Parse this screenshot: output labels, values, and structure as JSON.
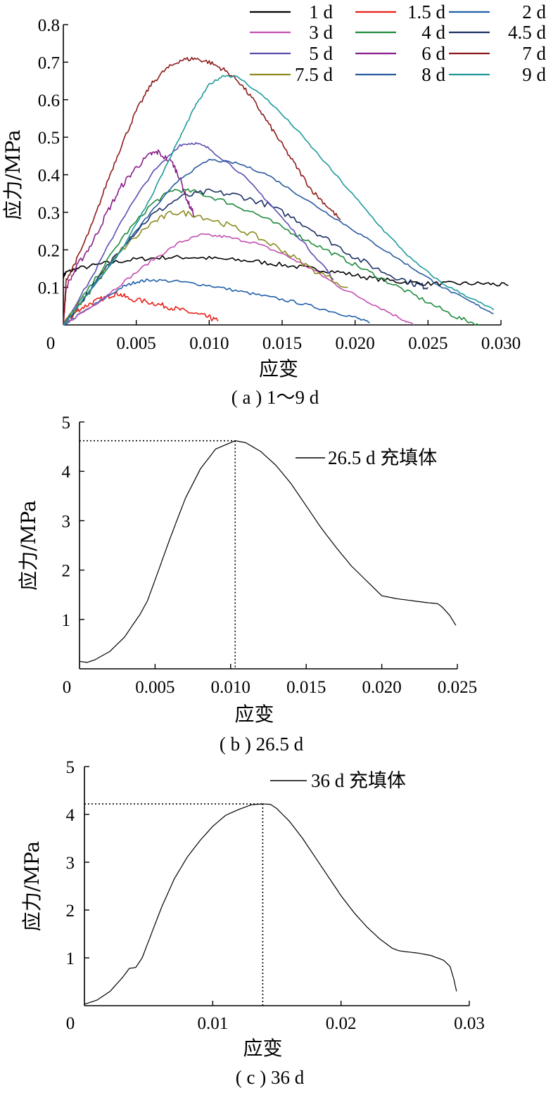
{
  "chart_data": [
    {
      "type": "line",
      "caption": "( a ) 1～9 d",
      "xlabel": "应变",
      "ylabel": "应力/MPa",
      "xlim": [
        0,
        0.03
      ],
      "ylim": [
        0,
        0.8
      ],
      "xticks": [
        0.005,
        0.01,
        0.015,
        0.02,
        0.025,
        0.03
      ],
      "xtick_labels": [
        "0.005",
        "0.010",
        "0.015",
        "0.020",
        "0.025",
        "0.030"
      ],
      "yticks": [
        0.1,
        0.2,
        0.3,
        0.4,
        0.5,
        0.6,
        0.7,
        0.8
      ],
      "ytick_labels": [
        "0.1",
        "0.2",
        "0.3",
        "0.4",
        "0.5",
        "0.6",
        "0.7",
        "0.8"
      ],
      "origin_label": "0",
      "legend_position": "top-right",
      "series": [
        {
          "name": "1 d",
          "color": "#000000",
          "noise": 0.006,
          "x": [
            0,
            0.0002,
            0.001,
            0.003,
            0.005,
            0.007,
            0.009,
            0.011,
            0.013,
            0.015,
            0.017,
            0.019,
            0.021,
            0.023,
            0.025,
            0.027,
            0.029,
            0.0305
          ],
          "y": [
            0.13,
            0.14,
            0.15,
            0.165,
            0.175,
            0.18,
            0.18,
            0.175,
            0.17,
            0.16,
            0.15,
            0.14,
            0.125,
            0.115,
            0.11,
            0.11,
            0.11,
            0.105
          ]
        },
        {
          "name": "1.5 d",
          "color": "#e8201a",
          "noise": 0.007,
          "x": [
            0,
            0.0005,
            0.001,
            0.002,
            0.003,
            0.0037,
            0.0045,
            0.006,
            0.007,
            0.008,
            0.009,
            0.01,
            0.0106
          ],
          "y": [
            0,
            0.02,
            0.04,
            0.06,
            0.075,
            0.085,
            0.07,
            0.06,
            0.05,
            0.04,
            0.03,
            0.02,
            0.01
          ]
        },
        {
          "name": "2 d",
          "color": "#1f5fa8",
          "noise": 0.004,
          "x": [
            0,
            0.002,
            0.004,
            0.005,
            0.006,
            0.008,
            0.01,
            0.012,
            0.014,
            0.016,
            0.018,
            0.02,
            0.021
          ],
          "y": [
            0,
            0.05,
            0.1,
            0.115,
            0.12,
            0.115,
            0.105,
            0.09,
            0.075,
            0.06,
            0.04,
            0.02,
            0.005
          ]
        },
        {
          "name": "3 d",
          "color": "#c24fb0",
          "noise": 0.004,
          "x": [
            0,
            0.002,
            0.004,
            0.006,
            0.008,
            0.0095,
            0.011,
            0.013,
            0.015,
            0.017,
            0.019,
            0.021,
            0.023,
            0.024
          ],
          "y": [
            0,
            0.05,
            0.11,
            0.17,
            0.22,
            0.24,
            0.235,
            0.22,
            0.19,
            0.15,
            0.1,
            0.06,
            0.02,
            0.0
          ]
        },
        {
          "name": "4 d",
          "color": "#1f8a3c",
          "noise": 0.006,
          "x": [
            0,
            0.002,
            0.004,
            0.006,
            0.0075,
            0.009,
            0.011,
            0.013,
            0.015,
            0.017,
            0.019,
            0.021,
            0.023,
            0.025,
            0.027,
            0.0285
          ],
          "y": [
            0,
            0.11,
            0.23,
            0.32,
            0.36,
            0.355,
            0.33,
            0.3,
            0.26,
            0.22,
            0.18,
            0.14,
            0.1,
            0.06,
            0.02,
            0.0
          ]
        },
        {
          "name": "4.5 d",
          "color": "#1c2f63",
          "noise": 0.008,
          "x": [
            0,
            0.002,
            0.004,
            0.006,
            0.008,
            0.01,
            0.012,
            0.014,
            0.016,
            0.018,
            0.02,
            0.022,
            0.024,
            0.025
          ],
          "y": [
            0,
            0.1,
            0.21,
            0.29,
            0.34,
            0.355,
            0.345,
            0.32,
            0.28,
            0.23,
            0.18,
            0.14,
            0.11,
            0.1
          ]
        },
        {
          "name": "5 d",
          "color": "#5a4fb0",
          "noise": 0.004,
          "x": [
            0,
            0.002,
            0.004,
            0.006,
            0.008,
            0.009,
            0.01,
            0.012,
            0.014,
            0.016,
            0.018,
            0.0185
          ],
          "y": [
            0,
            0.13,
            0.28,
            0.4,
            0.48,
            0.485,
            0.47,
            0.41,
            0.33,
            0.24,
            0.15,
            0.12
          ]
        },
        {
          "name": "6 d",
          "color": "#8a1f8a",
          "noise": 0.008,
          "x": [
            0,
            0.0002,
            0.001,
            0.002,
            0.003,
            0.004,
            0.005,
            0.006,
            0.0065,
            0.0075,
            0.008,
            0.0085,
            0.009
          ],
          "y": [
            0,
            0.1,
            0.16,
            0.22,
            0.3,
            0.37,
            0.42,
            0.455,
            0.46,
            0.43,
            0.39,
            0.33,
            0.29
          ]
        },
        {
          "name": "7 d",
          "color": "#8c1c1c",
          "noise": 0.006,
          "x": [
            0,
            0.0002,
            0.001,
            0.002,
            0.003,
            0.004,
            0.005,
            0.006,
            0.007,
            0.008,
            0.009,
            0.01,
            0.011,
            0.012,
            0.013,
            0.014,
            0.015,
            0.016,
            0.017,
            0.018,
            0.019
          ],
          "y": [
            0,
            0.12,
            0.18,
            0.27,
            0.38,
            0.48,
            0.57,
            0.64,
            0.68,
            0.705,
            0.71,
            0.7,
            0.68,
            0.65,
            0.6,
            0.54,
            0.48,
            0.42,
            0.36,
            0.32,
            0.28
          ]
        },
        {
          "name": "7.5 d",
          "color": "#8a8a1f",
          "noise": 0.008,
          "x": [
            0,
            0.002,
            0.004,
            0.006,
            0.0075,
            0.009,
            0.011,
            0.013,
            0.015,
            0.017,
            0.0195
          ],
          "y": [
            0,
            0.1,
            0.2,
            0.27,
            0.3,
            0.295,
            0.27,
            0.24,
            0.2,
            0.15,
            0.1
          ]
        },
        {
          "name": "8 d",
          "color": "#2a5aa0",
          "noise": 0.003,
          "x": [
            0,
            0.002,
            0.004,
            0.006,
            0.008,
            0.01,
            0.012,
            0.014,
            0.016,
            0.018,
            0.02,
            0.022,
            0.024,
            0.026,
            0.028,
            0.0295
          ],
          "y": [
            0,
            0.1,
            0.2,
            0.3,
            0.39,
            0.44,
            0.43,
            0.4,
            0.35,
            0.3,
            0.25,
            0.2,
            0.15,
            0.1,
            0.06,
            0.03
          ]
        },
        {
          "name": "9 d",
          "color": "#1f9a9a",
          "noise": 0.003,
          "x": [
            0,
            0.002,
            0.004,
            0.006,
            0.008,
            0.009,
            0.01,
            0.011,
            0.012,
            0.014,
            0.016,
            0.018,
            0.02,
            0.022,
            0.024,
            0.026,
            0.028,
            0.0295
          ],
          "y": [
            0,
            0.1,
            0.2,
            0.34,
            0.5,
            0.58,
            0.64,
            0.665,
            0.66,
            0.6,
            0.52,
            0.43,
            0.34,
            0.25,
            0.17,
            0.11,
            0.07,
            0.04
          ]
        }
      ]
    },
    {
      "type": "line",
      "caption": "( b ) 26.5 d",
      "xlabel": "应变",
      "ylabel": "应力/MPa",
      "xlim": [
        0,
        0.025
      ],
      "ylim": [
        0,
        5
      ],
      "xticks": [
        0.005,
        0.01,
        0.015,
        0.02,
        0.025
      ],
      "xtick_labels": [
        "0.005",
        "0.010",
        "0.015",
        "0.020",
        "0.025"
      ],
      "yticks": [
        1,
        2,
        3,
        4,
        5
      ],
      "ytick_labels": [
        "1",
        "2",
        "3",
        "4",
        "5"
      ],
      "origin_label": "0",
      "legend_position": "top-right",
      "peak": {
        "x": 0.0103,
        "y": 4.62
      },
      "series": [
        {
          "name": "26.5 d 充填体",
          "color": "#000000",
          "noise": 0,
          "x": [
            0,
            0.0005,
            0.001,
            0.002,
            0.003,
            0.0035,
            0.004,
            0.0045,
            0.005,
            0.006,
            0.007,
            0.008,
            0.009,
            0.0103,
            0.011,
            0.012,
            0.013,
            0.014,
            0.015,
            0.016,
            0.017,
            0.018,
            0.019,
            0.02,
            0.021,
            0.022,
            0.023,
            0.0237,
            0.024,
            0.0245,
            0.0249
          ],
          "y": [
            0.15,
            0.13,
            0.18,
            0.35,
            0.65,
            0.88,
            1.1,
            1.38,
            1.8,
            2.65,
            3.45,
            4.05,
            4.45,
            4.62,
            4.58,
            4.4,
            4.12,
            3.75,
            3.3,
            2.85,
            2.45,
            2.08,
            1.78,
            1.48,
            1.42,
            1.38,
            1.34,
            1.32,
            1.25,
            1.08,
            0.88
          ]
        }
      ]
    },
    {
      "type": "line",
      "caption": "( c ) 36 d",
      "xlabel": "应变",
      "ylabel": "应力/MPa",
      "xlim": [
        0,
        0.03
      ],
      "ylim": [
        0,
        5
      ],
      "xticks": [
        0.01,
        0.02,
        0.03
      ],
      "xtick_labels": [
        "0.01",
        "0.02",
        "0.03"
      ],
      "yticks": [
        1,
        2,
        3,
        4,
        5
      ],
      "ytick_labels": [
        "1",
        "2",
        "3",
        "4",
        "5"
      ],
      "origin_label": "0",
      "legend_position": "top-right",
      "peak": {
        "x": 0.0139,
        "y": 4.22
      },
      "series": [
        {
          "name": "36 d 充填体",
          "color": "#000000",
          "noise": 0,
          "x": [
            0,
            0.001,
            0.002,
            0.003,
            0.0035,
            0.004,
            0.0045,
            0.005,
            0.006,
            0.007,
            0.008,
            0.009,
            0.01,
            0.011,
            0.012,
            0.013,
            0.0139,
            0.0145,
            0.015,
            0.016,
            0.017,
            0.018,
            0.019,
            0.02,
            0.021,
            0.022,
            0.023,
            0.024,
            0.0245,
            0.025,
            0.026,
            0.027,
            0.028,
            0.0285,
            0.0288,
            0.029
          ],
          "y": [
            0.03,
            0.12,
            0.3,
            0.6,
            0.78,
            0.8,
            1.0,
            1.35,
            2.05,
            2.65,
            3.1,
            3.45,
            3.75,
            3.98,
            4.1,
            4.2,
            4.22,
            4.21,
            4.12,
            3.85,
            3.5,
            3.1,
            2.7,
            2.3,
            1.95,
            1.65,
            1.4,
            1.2,
            1.15,
            1.13,
            1.1,
            1.05,
            0.95,
            0.82,
            0.55,
            0.3
          ]
        }
      ]
    }
  ]
}
